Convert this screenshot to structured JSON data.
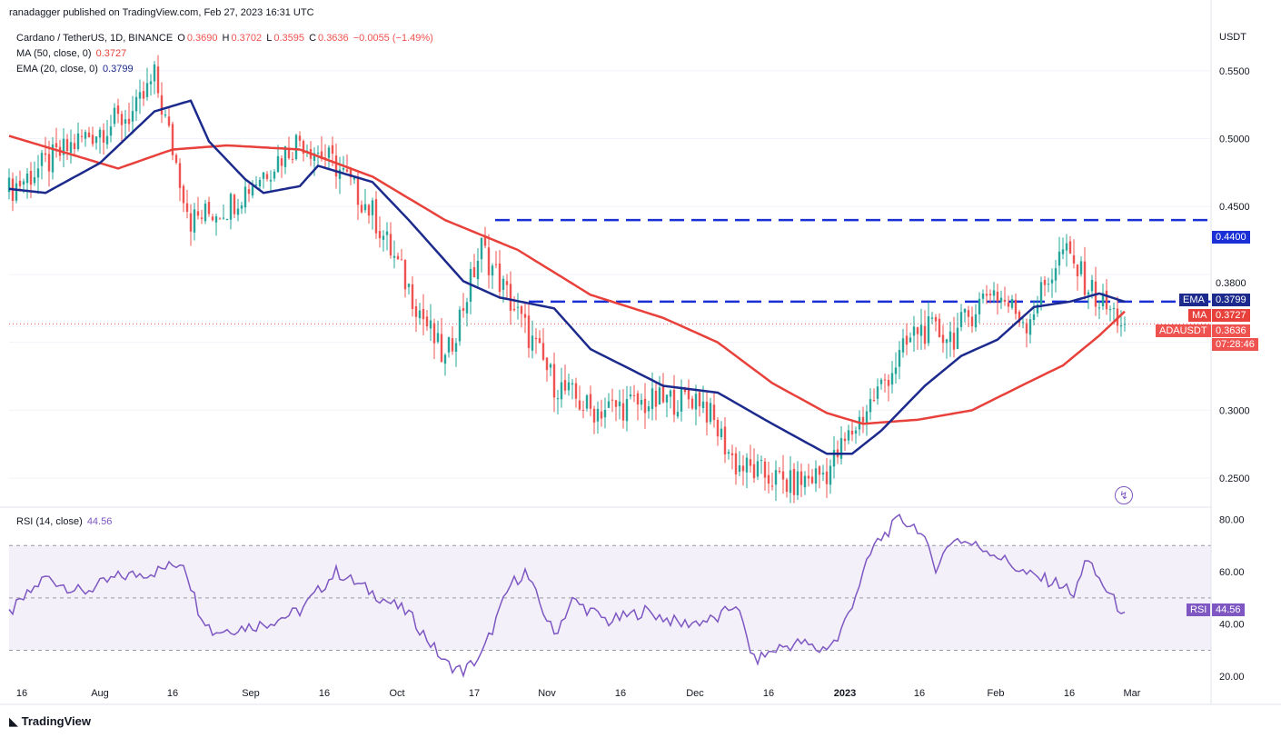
{
  "header": {
    "publisher": "ranadagger published on TradingView.com, Feb 27, 2023 16:31 UTC"
  },
  "legend": {
    "symbol": "Cardano / TetherUS, 1D, BINANCE",
    "open_label": "O",
    "open": "0.3690",
    "high_label": "H",
    "high": "0.3702",
    "low_label": "L",
    "low": "0.3595",
    "close_label": "C",
    "close": "0.3636",
    "change": "−0.0055 (−1.49%)",
    "ma_label": "MA (50, close, 0)",
    "ma_value": "0.3727",
    "ema_label": "EMA (20, close, 0)",
    "ema_value": "0.3799",
    "rsi_label": "RSI (14, close)",
    "rsi_value": "44.56"
  },
  "currency": "USDT",
  "price_axis": {
    "ticks": [
      "0.5500",
      "0.5000",
      "0.4500",
      "0.3000",
      "0.2500"
    ]
  },
  "rsi_axis": {
    "ticks": [
      "80.00",
      "60.00",
      "40.00",
      "20.00"
    ]
  },
  "time_axis": {
    "ticks": [
      "16",
      "Aug",
      "16",
      "Sep",
      "16",
      "Oct",
      "17",
      "Nov",
      "16",
      "Dec",
      "16",
      "2023",
      "16",
      "Feb",
      "16",
      "Mar"
    ]
  },
  "price_labels": {
    "level_high": "0.4400",
    "level_mid": "0.3800",
    "ema_tag": "EMA",
    "ema_val": "0.3799",
    "ma_tag": "MA",
    "ma_val": "0.3727",
    "sym_tag": "ADAUSDT",
    "sym_val": "0.3636",
    "countdown": "07:28:46",
    "rsi_tag": "RSI",
    "rsi_val": "44.56"
  },
  "colors": {
    "up": "#26a69a",
    "down": "#ef5350",
    "ma": "#e8403a",
    "ema": "#1b2a8c",
    "rsi": "#7e57c2",
    "level": "#1a2fd6",
    "grid": "#f0f3fa"
  },
  "footer": {
    "brand": "TradingView"
  },
  "chart_data": [
    {
      "type": "candlestick",
      "title": "Cardano / TetherUS, 1D, BINANCE",
      "ylabel": "USDT",
      "ylim": [
        0.23,
        0.59
      ],
      "scale": "linear",
      "x_period": [
        "2022-07-10",
        "2023-02-27"
      ],
      "levels": [
        0.44,
        0.38
      ],
      "series": [
        {
          "name": "ADAUSDT",
          "style": "candles",
          "sampled": [
            [
              0,
              0.462
            ],
            [
              20,
              0.5
            ],
            [
              35,
              0.52
            ],
            [
              40,
              0.545
            ],
            [
              50,
              0.44
            ],
            [
              60,
              0.45
            ],
            [
              80,
              0.5
            ],
            [
              90,
              0.48
            ],
            [
              100,
              0.445
            ],
            [
              120,
              0.335
            ],
            [
              130,
              0.42
            ],
            [
              150,
              0.32
            ],
            [
              160,
              0.3
            ],
            [
              190,
              0.31
            ],
            [
              200,
              0.26
            ],
            [
              215,
              0.245
            ],
            [
              225,
              0.255
            ],
            [
              250,
              0.36
            ],
            [
              260,
              0.355
            ],
            [
              270,
              0.39
            ],
            [
              280,
              0.365
            ],
            [
              290,
              0.418
            ],
            [
              300,
              0.38
            ],
            [
              307,
              0.3636
            ]
          ]
        },
        {
          "name": "MA (50, close, 0)",
          "style": "line",
          "sampled": [
            [
              0,
              0.502
            ],
            [
              30,
              0.478
            ],
            [
              45,
              0.492
            ],
            [
              60,
              0.495
            ],
            [
              80,
              0.492
            ],
            [
              100,
              0.472
            ],
            [
              120,
              0.44
            ],
            [
              140,
              0.418
            ],
            [
              160,
              0.385
            ],
            [
              180,
              0.368
            ],
            [
              195,
              0.35
            ],
            [
              210,
              0.32
            ],
            [
              225,
              0.298
            ],
            [
              235,
              0.29
            ],
            [
              250,
              0.293
            ],
            [
              265,
              0.3
            ],
            [
              280,
              0.32
            ],
            [
              290,
              0.333
            ],
            [
              300,
              0.355
            ],
            [
              307,
              0.3727
            ]
          ]
        },
        {
          "name": "EMA (20, close, 0)",
          "style": "line",
          "sampled": [
            [
              0,
              0.463
            ],
            [
              10,
              0.46
            ],
            [
              25,
              0.482
            ],
            [
              40,
              0.52
            ],
            [
              50,
              0.528
            ],
            [
              55,
              0.498
            ],
            [
              65,
              0.47
            ],
            [
              70,
              0.46
            ],
            [
              80,
              0.465
            ],
            [
              85,
              0.48
            ],
            [
              100,
              0.468
            ],
            [
              110,
              0.44
            ],
            [
              125,
              0.395
            ],
            [
              135,
              0.383
            ],
            [
              150,
              0.375
            ],
            [
              160,
              0.345
            ],
            [
              180,
              0.318
            ],
            [
              195,
              0.313
            ],
            [
              210,
              0.29
            ],
            [
              225,
              0.268
            ],
            [
              232,
              0.268
            ],
            [
              240,
              0.285
            ],
            [
              252,
              0.318
            ],
            [
              262,
              0.34
            ],
            [
              272,
              0.352
            ],
            [
              282,
              0.376
            ],
            [
              292,
              0.38
            ],
            [
              300,
              0.386
            ],
            [
              307,
              0.3799
            ]
          ]
        }
      ]
    },
    {
      "type": "line",
      "title": "RSI (14, close)",
      "ylim": [
        18,
        84
      ],
      "bands": [
        30,
        70
      ],
      "midline": 50,
      "series": [
        {
          "name": "RSI",
          "sampled": [
            [
              0,
              44
            ],
            [
              10,
              58
            ],
            [
              20,
              52
            ],
            [
              30,
              58
            ],
            [
              40,
              60
            ],
            [
              48,
              64
            ],
            [
              52,
              46
            ],
            [
              56,
              37
            ],
            [
              70,
              40
            ],
            [
              80,
              45
            ],
            [
              90,
              60
            ],
            [
              100,
              52
            ],
            [
              110,
              44
            ],
            [
              120,
              25
            ],
            [
              125,
              22
            ],
            [
              130,
              28
            ],
            [
              138,
              55
            ],
            [
              142,
              60
            ],
            [
              150,
              36
            ],
            [
              155,
              49
            ],
            [
              165,
              41
            ],
            [
              175,
              45
            ],
            [
              185,
              40
            ],
            [
              195,
              42
            ],
            [
              200,
              48
            ],
            [
              205,
              26
            ],
            [
              212,
              31
            ],
            [
              218,
              33
            ],
            [
              223,
              30
            ],
            [
              228,
              34
            ],
            [
              232,
              48
            ],
            [
              238,
              70
            ],
            [
              245,
              80
            ],
            [
              250,
              77
            ],
            [
              255,
              62
            ],
            [
              260,
              73
            ],
            [
              270,
              68
            ],
            [
              280,
              59
            ],
            [
              290,
              55
            ],
            [
              293,
              50
            ],
            [
              296,
              65
            ],
            [
              305,
              47
            ],
            [
              307,
              44.56
            ]
          ]
        }
      ]
    }
  ]
}
